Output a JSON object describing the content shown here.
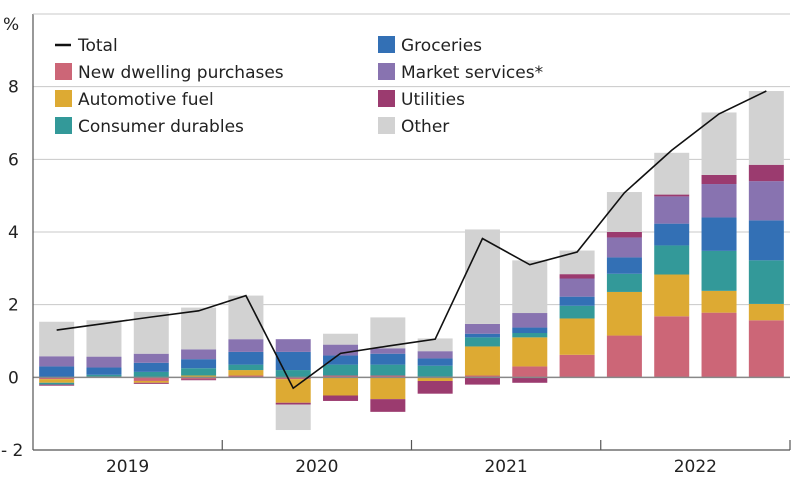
{
  "chart_data": {
    "type": "bar",
    "subtype": "stacked-bar-with-line",
    "title": "",
    "ylabel": "%",
    "xlabel": "",
    "ylim": [
      -2,
      10
    ],
    "yticks": [
      -2,
      0,
      2,
      4,
      6,
      8
    ],
    "ytick_labels": [
      "- 2",
      "0",
      "2",
      "4",
      "6",
      "8"
    ],
    "grid": true,
    "legend_position": "top-left",
    "x_groups": [
      "2019",
      "2020",
      "2021",
      "2022"
    ],
    "categories": [
      "2019Q1",
      "2019Q2",
      "2019Q3",
      "2019Q4",
      "2020Q1",
      "2020Q2",
      "2020Q3",
      "2020Q4",
      "2021Q1",
      "2021Q2",
      "2021Q3",
      "2021Q4",
      "2022Q1",
      "2022Q2",
      "2022Q3",
      "2022Q4"
    ],
    "series": [
      {
        "name": "New dwelling purchases",
        "color": "#cc6677",
        "values": [
          -0.05,
          0.02,
          -0.1,
          -0.05,
          0.05,
          -0.05,
          0.05,
          0.05,
          0.02,
          0.05,
          0.3,
          0.62,
          1.15,
          1.68,
          1.78,
          1.57
        ]
      },
      {
        "name": "Automotive fuel",
        "color": "#ddaa33",
        "values": [
          -0.1,
          0.0,
          -0.05,
          0.05,
          0.15,
          -0.65,
          -0.5,
          -0.6,
          -0.1,
          0.8,
          0.8,
          1.0,
          1.2,
          1.15,
          0.6,
          0.45
        ]
      },
      {
        "name": "Consumer durables",
        "color": "#339999",
        "values": [
          -0.05,
          0.05,
          0.15,
          0.2,
          0.15,
          0.2,
          0.3,
          0.3,
          0.3,
          0.25,
          0.12,
          0.35,
          0.5,
          0.8,
          1.1,
          1.2
        ]
      },
      {
        "name": "Groceries",
        "color": "#3370b5",
        "values": [
          0.3,
          0.2,
          0.25,
          0.25,
          0.35,
          0.5,
          0.25,
          0.3,
          0.2,
          0.1,
          0.15,
          0.25,
          0.45,
          0.6,
          0.92,
          1.1
        ]
      },
      {
        "name": "Market services*",
        "color": "#8873b0",
        "values": [
          0.28,
          0.3,
          0.25,
          0.27,
          0.35,
          0.35,
          0.3,
          0.15,
          0.2,
          0.27,
          0.4,
          0.5,
          0.55,
          0.75,
          0.92,
          1.08
        ]
      },
      {
        "name": "Utilities",
        "color": "#9b3b6f",
        "values": [
          -0.03,
          0.0,
          -0.03,
          -0.03,
          0.0,
          -0.05,
          -0.15,
          -0.35,
          -0.35,
          -0.2,
          -0.15,
          0.12,
          0.15,
          0.05,
          0.25,
          0.45
        ]
      },
      {
        "name": "Other",
        "color": "#d2d2d2",
        "values": [
          0.95,
          1.0,
          1.15,
          1.15,
          1.2,
          -0.7,
          0.3,
          0.85,
          0.35,
          2.6,
          1.45,
          0.65,
          1.1,
          1.15,
          1.72,
          2.03
        ]
      }
    ],
    "line": {
      "name": "Total",
      "color": "#111111",
      "values": [
        1.3,
        1.48,
        1.66,
        1.83,
        2.25,
        -0.3,
        0.66,
        0.86,
        1.05,
        3.82,
        3.1,
        3.45,
        5.08,
        6.25,
        7.25,
        7.88
      ]
    }
  }
}
